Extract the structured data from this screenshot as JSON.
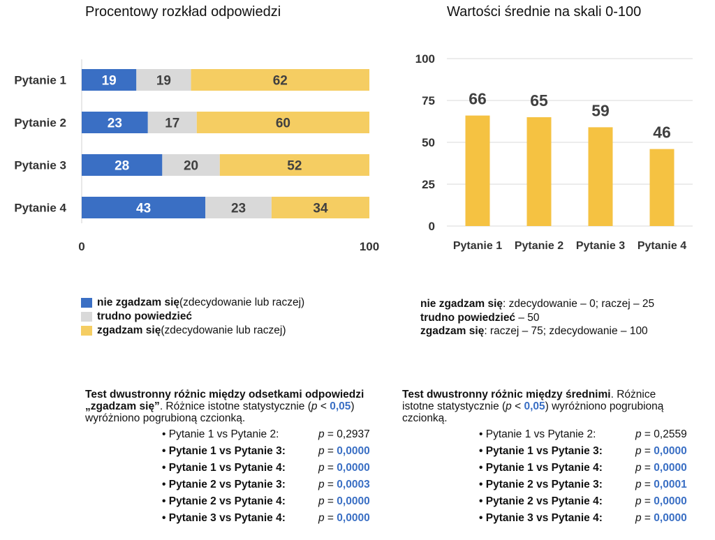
{
  "chart_data": [
    {
      "type": "bar",
      "orientation": "horizontal",
      "stacked": true,
      "title": "Procentowy rozkład odpowiedzi",
      "categories": [
        "Pytanie 1",
        "Pytanie 2",
        "Pytanie 3",
        "Pytanie 4"
      ],
      "series": [
        {
          "name": "nie zgadzam się",
          "color": "#3a6fc4",
          "values": [
            19,
            23,
            28,
            43
          ]
        },
        {
          "name": "trudno powiedzieć",
          "color": "#d9d9d9",
          "values": [
            19,
            17,
            20,
            23
          ]
        },
        {
          "name": "zgadzam się",
          "color": "#f5cd62",
          "values": [
            62,
            60,
            52,
            34
          ]
        }
      ],
      "xlim": [
        0,
        100
      ],
      "xticks": [
        "0",
        "100"
      ],
      "grid": false
    },
    {
      "type": "bar",
      "title": "Wartości średnie na skali 0-100",
      "categories": [
        "Pytanie 1",
        "Pytanie 2",
        "Pytanie 3",
        "Pytanie 4"
      ],
      "values": [
        66,
        65,
        59,
        46
      ],
      "color": "#f5c242",
      "ylim": [
        0,
        100
      ],
      "yticks": [
        "0",
        "25",
        "50",
        "75",
        "100"
      ],
      "grid": true
    }
  ],
  "legend_left": [
    {
      "bold": "nie zgadzam się",
      "rest": " (zdecydowanie lub raczej)",
      "color": "#3a6fc4"
    },
    {
      "bold": "trudno powiedzieć",
      "rest": "",
      "color": "#d9d9d9"
    },
    {
      "bold": "zgadzam się",
      "rest": " (zdecydowanie lub raczej)",
      "color": "#f5cd62"
    }
  ],
  "scale_note": [
    {
      "bold": "nie zgadzam się",
      "rest": ": zdecydowanie – 0;  raczej – 25"
    },
    {
      "bold": "trudno powiedzieć",
      "rest": " – 50"
    },
    {
      "bold": "zgadzam się",
      "rest": ": raczej – 75;  zdecydowanie – 100"
    }
  ],
  "test_left": {
    "heading_line1": "Test dwustronny różnic między odsetkami odpowiedzi",
    "heading_bold2": "„zgadzam się”",
    "heading_rest2": ". Różnice istotne statystycznie (",
    "p_symbol": "p",
    "lt": " < ",
    "alpha": "0,05",
    "close": ")",
    "heading_line3": "wyróżniono pogrubioną czcionką.",
    "rows": [
      {
        "label": "Pytanie 1 vs Pytanie 2:",
        "p": "0,2937",
        "sig": false
      },
      {
        "label": "Pytanie 1 vs Pytanie 3:",
        "p": "0,0000",
        "sig": true
      },
      {
        "label": "Pytanie 1 vs Pytanie 4:",
        "p": "0,0000",
        "sig": true
      },
      {
        "label": "Pytanie 2 vs Pytanie 3:",
        "p": "0,0003",
        "sig": true
      },
      {
        "label": "Pytanie 2 vs Pytanie 4:",
        "p": "0,0000",
        "sig": true
      },
      {
        "label": "Pytanie 3 vs Pytanie 4:",
        "p": "0,0000",
        "sig": true
      }
    ]
  },
  "test_right": {
    "heading_bold1": "Test dwustronny różnic między średnimi",
    "heading_rest1": ". Różnice",
    "heading_line2a": "istotne statystycznie (",
    "p_symbol": "p",
    "lt": " < ",
    "alpha": "0,05",
    "heading_line2b": ") wyróżniono pogrubioną",
    "heading_line3": "czcionką.",
    "rows": [
      {
        "label": "Pytanie 1 vs Pytanie 2:",
        "p": "0,2559",
        "sig": false
      },
      {
        "label": "Pytanie 1 vs Pytanie 3:",
        "p": "0,0000",
        "sig": true
      },
      {
        "label": "Pytanie 1 vs Pytanie 4:",
        "p": "0,0000",
        "sig": true
      },
      {
        "label": "Pytanie 2 vs Pytanie 3:",
        "p": "0,0001",
        "sig": true
      },
      {
        "label": "Pytanie 2 vs Pytanie 4:",
        "p": "0,0000",
        "sig": true
      },
      {
        "label": "Pytanie 3 vs Pytanie 4:",
        "p": "0,0000",
        "sig": true
      }
    ]
  },
  "bullet": "•",
  "p_eq": " = "
}
